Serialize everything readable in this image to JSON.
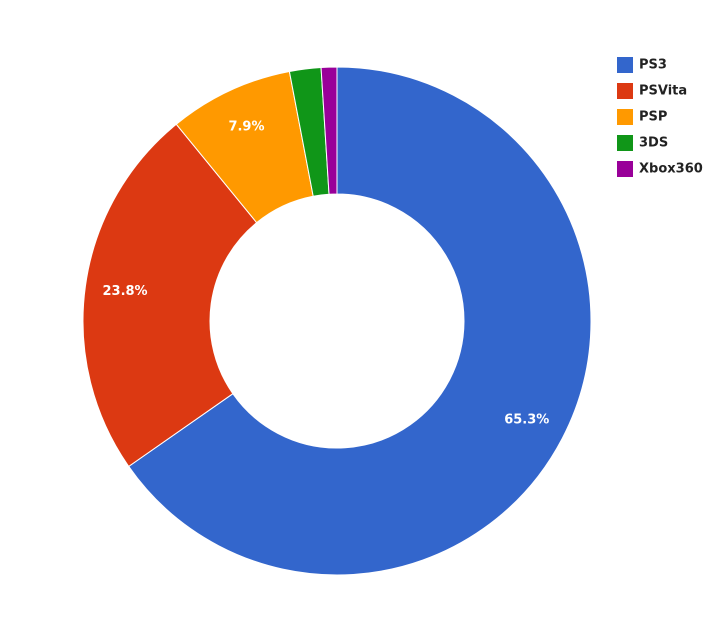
{
  "chart_data": {
    "type": "donut",
    "categories": [
      "PS3",
      "PSVita",
      "PSP",
      "3DS",
      "Xbox360"
    ],
    "values": [
      65.3,
      23.8,
      7.9,
      2.0,
      1.0
    ],
    "value_labels": [
      "65.3%",
      "23.8%",
      "7.9%",
      null,
      null
    ],
    "colors": [
      "#3366cc",
      "#dc3912",
      "#ff9900",
      "#109618",
      "#990099"
    ],
    "legend": "top-right"
  }
}
